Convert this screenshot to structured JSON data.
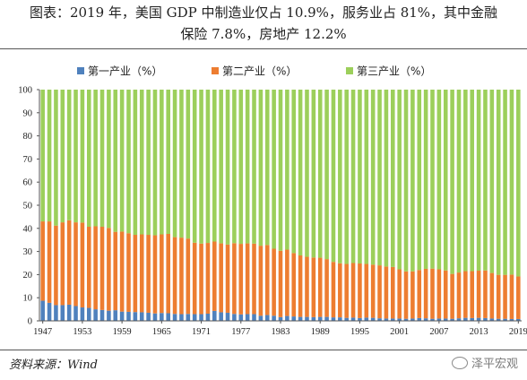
{
  "title_line1": "图表：2019 年，美国 GDP 中制造业仅占 10.9%，服务业占 81%，其中金融",
  "title_line2": "保险 7.8%，房地产 12.2%",
  "source": "资料来源：Wind",
  "watermark": "泽平宏观",
  "colors": {
    "primary": "#4f81bd",
    "secondary": "#ed7d31",
    "tertiary": "#9ccf5b"
  },
  "chart_data": {
    "type": "bar",
    "stacked": true,
    "title": "图表：2019 年，美国 GDP 中制造业仅占 10.9%，服务业占 81%，其中金融保险 7.8%，房地产 12.2%",
    "ylim": [
      0,
      100
    ],
    "yticks": [
      0,
      10,
      20,
      30,
      40,
      50,
      60,
      70,
      80,
      90,
      100
    ],
    "xtick_labels": [
      "1947",
      "1953",
      "1959",
      "1965",
      "1971",
      "1977",
      "1983",
      "1989",
      "1995",
      "2001",
      "2007",
      "2013",
      "2019"
    ],
    "legend_position": "top",
    "grid": false,
    "categories": [
      1947,
      1948,
      1949,
      1950,
      1951,
      1952,
      1953,
      1954,
      1955,
      1956,
      1957,
      1958,
      1959,
      1960,
      1961,
      1962,
      1963,
      1964,
      1965,
      1966,
      1967,
      1968,
      1969,
      1970,
      1971,
      1972,
      1973,
      1974,
      1975,
      1976,
      1977,
      1978,
      1979,
      1980,
      1981,
      1982,
      1983,
      1984,
      1985,
      1986,
      1987,
      1988,
      1989,
      1990,
      1991,
      1992,
      1993,
      1994,
      1995,
      1996,
      1997,
      1998,
      1999,
      2000,
      2001,
      2002,
      2003,
      2004,
      2005,
      2006,
      2007,
      2008,
      2009,
      2010,
      2011,
      2012,
      2013,
      2014,
      2015,
      2016,
      2017,
      2018,
      2019
    ],
    "series": [
      {
        "name": "第一产业（%）",
        "values": [
          8.7,
          7.8,
          6.8,
          6.8,
          7.0,
          6.4,
          5.8,
          5.6,
          5.0,
          4.7,
          4.4,
          4.6,
          4.0,
          3.9,
          3.8,
          3.7,
          3.5,
          3.2,
          3.4,
          3.3,
          3.0,
          2.9,
          3.0,
          2.9,
          2.9,
          3.1,
          4.3,
          3.7,
          3.5,
          3.0,
          2.8,
          2.9,
          2.9,
          2.2,
          2.5,
          2.2,
          1.6,
          2.1,
          1.9,
          1.7,
          1.7,
          1.6,
          1.7,
          1.7,
          1.5,
          1.5,
          1.3,
          1.4,
          1.2,
          1.4,
          1.3,
          1.1,
          1.0,
          1.0,
          1.0,
          0.9,
          1.0,
          1.2,
          1.1,
          0.9,
          1.0,
          1.0,
          0.9,
          1.1,
          1.3,
          1.2,
          1.3,
          1.2,
          1.0,
          0.9,
          0.9,
          0.8,
          0.8
        ]
      },
      {
        "name": "第二产业（%）",
        "values": [
          34.3,
          35.2,
          34.4,
          35.8,
          36.5,
          36.2,
          36.7,
          35.1,
          35.9,
          36.0,
          35.8,
          33.9,
          34.6,
          34.0,
          33.4,
          33.7,
          33.7,
          33.8,
          34.0,
          34.3,
          33.2,
          33.1,
          32.6,
          30.9,
          30.5,
          30.6,
          30.0,
          29.8,
          29.5,
          30.6,
          30.5,
          30.6,
          30.5,
          30.3,
          30.3,
          29.0,
          28.7,
          28.7,
          27.4,
          26.6,
          26.0,
          25.8,
          25.6,
          25.0,
          24.0,
          23.4,
          23.3,
          23.6,
          23.6,
          23.2,
          23.0,
          22.9,
          22.5,
          22.3,
          21.3,
          20.5,
          20.4,
          20.8,
          21.4,
          21.7,
          21.3,
          20.8,
          19.4,
          19.8,
          20.2,
          20.3,
          20.4,
          20.6,
          19.7,
          19.0,
          19.0,
          19.2,
          18.4
        ]
      },
      {
        "name": "第三产业（%）",
        "values": [
          57.0,
          57.0,
          58.8,
          57.4,
          56.5,
          57.4,
          57.5,
          59.3,
          59.1,
          59.3,
          59.8,
          61.5,
          61.4,
          62.1,
          62.8,
          62.6,
          62.8,
          63.0,
          62.6,
          62.4,
          63.8,
          64.0,
          64.4,
          66.2,
          66.6,
          66.3,
          65.7,
          66.5,
          67.0,
          66.4,
          66.7,
          66.5,
          66.6,
          67.5,
          67.2,
          68.8,
          69.7,
          69.2,
          70.7,
          71.7,
          72.3,
          72.6,
          72.7,
          73.3,
          74.5,
          75.1,
          75.4,
          75.0,
          75.2,
          75.4,
          75.7,
          76.0,
          76.5,
          76.7,
          77.7,
          78.6,
          78.6,
          78.0,
          77.5,
          77.4,
          77.7,
          78.2,
          79.7,
          79.1,
          78.5,
          78.5,
          78.3,
          78.2,
          79.3,
          80.1,
          80.1,
          80.0,
          80.8
        ]
      }
    ]
  }
}
